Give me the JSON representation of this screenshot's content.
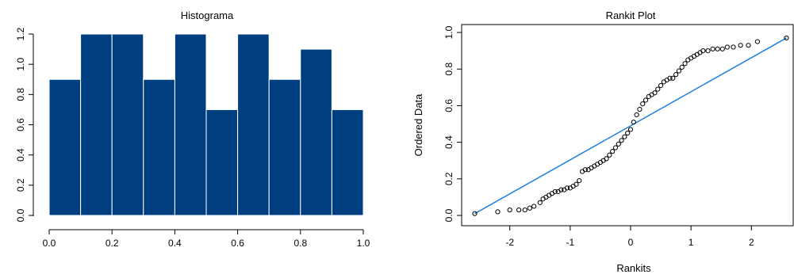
{
  "chart_data": [
    {
      "type": "bar",
      "title": "Histograma",
      "xlabel": "",
      "ylabel": "",
      "bin_edges": [
        0.0,
        0.1,
        0.2,
        0.3,
        0.4,
        0.5,
        0.6,
        0.7,
        0.8,
        0.9,
        1.0
      ],
      "values": [
        0.9,
        1.2,
        1.2,
        0.9,
        1.2,
        0.7,
        1.2,
        0.9,
        1.1,
        0.7
      ],
      "xlim": [
        0.0,
        1.0
      ],
      "ylim": [
        0.0,
        1.2
      ],
      "xticks": [
        "0.0",
        "0.2",
        "0.4",
        "0.6",
        "0.8",
        "1.0"
      ],
      "yticks": [
        "0.0",
        "0.2",
        "0.4",
        "0.6",
        "0.8",
        "1.0",
        "1.2"
      ],
      "bar_color": "#003f7f",
      "grid": false
    },
    {
      "type": "scatter",
      "title": "Rankit Plot",
      "xlabel": "Rankits",
      "ylabel": "Ordered Data",
      "xlim": [
        -2.6,
        2.6
      ],
      "ylim": [
        0.0,
        1.0
      ],
      "xticks": [
        "-2",
        "-1",
        "0",
        "1",
        "2"
      ],
      "yticks": [
        "0.0",
        "0.2",
        "0.4",
        "0.6",
        "0.8",
        "1.0"
      ],
      "points": [
        [
          -2.58,
          0.01
        ],
        [
          -2.2,
          0.02
        ],
        [
          -2.0,
          0.03
        ],
        [
          -1.85,
          0.03
        ],
        [
          -1.75,
          0.03
        ],
        [
          -1.67,
          0.04
        ],
        [
          -1.6,
          0.05
        ],
        [
          -1.5,
          0.07
        ],
        [
          -1.45,
          0.09
        ],
        [
          -1.4,
          0.1
        ],
        [
          -1.35,
          0.11
        ],
        [
          -1.3,
          0.12
        ],
        [
          -1.25,
          0.13
        ],
        [
          -1.2,
          0.13
        ],
        [
          -1.15,
          0.14
        ],
        [
          -1.1,
          0.14
        ],
        [
          -1.05,
          0.15
        ],
        [
          -1.0,
          0.15
        ],
        [
          -0.95,
          0.16
        ],
        [
          -0.9,
          0.17
        ],
        [
          -0.85,
          0.19
        ],
        [
          -0.8,
          0.24
        ],
        [
          -0.75,
          0.25
        ],
        [
          -0.7,
          0.25
        ],
        [
          -0.65,
          0.26
        ],
        [
          -0.6,
          0.27
        ],
        [
          -0.55,
          0.28
        ],
        [
          -0.5,
          0.29
        ],
        [
          -0.45,
          0.3
        ],
        [
          -0.4,
          0.31
        ],
        [
          -0.35,
          0.33
        ],
        [
          -0.3,
          0.35
        ],
        [
          -0.25,
          0.37
        ],
        [
          -0.2,
          0.39
        ],
        [
          -0.15,
          0.41
        ],
        [
          -0.1,
          0.43
        ],
        [
          -0.05,
          0.45
        ],
        [
          0.0,
          0.47
        ],
        [
          0.05,
          0.51
        ],
        [
          0.1,
          0.55
        ],
        [
          0.15,
          0.58
        ],
        [
          0.2,
          0.61
        ],
        [
          0.25,
          0.63
        ],
        [
          0.3,
          0.65
        ],
        [
          0.35,
          0.66
        ],
        [
          0.4,
          0.67
        ],
        [
          0.45,
          0.69
        ],
        [
          0.5,
          0.71
        ],
        [
          0.55,
          0.73
        ],
        [
          0.6,
          0.74
        ],
        [
          0.65,
          0.75
        ],
        [
          0.7,
          0.75
        ],
        [
          0.75,
          0.77
        ],
        [
          0.8,
          0.79
        ],
        [
          0.85,
          0.81
        ],
        [
          0.9,
          0.83
        ],
        [
          0.95,
          0.85
        ],
        [
          1.0,
          0.86
        ],
        [
          1.05,
          0.87
        ],
        [
          1.1,
          0.88
        ],
        [
          1.15,
          0.89
        ],
        [
          1.2,
          0.9
        ],
        [
          1.28,
          0.9
        ],
        [
          1.36,
          0.91
        ],
        [
          1.44,
          0.91
        ],
        [
          1.52,
          0.91
        ],
        [
          1.6,
          0.92
        ],
        [
          1.7,
          0.92
        ],
        [
          1.82,
          0.93
        ],
        [
          1.95,
          0.93
        ],
        [
          2.1,
          0.95
        ],
        [
          2.58,
          0.97
        ]
      ],
      "reference_line": {
        "from": [
          -2.58,
          0.01
        ],
        "to": [
          2.58,
          0.97
        ]
      },
      "point_color": "#000000",
      "line_color": "#1f7fe0",
      "grid": false
    }
  ]
}
